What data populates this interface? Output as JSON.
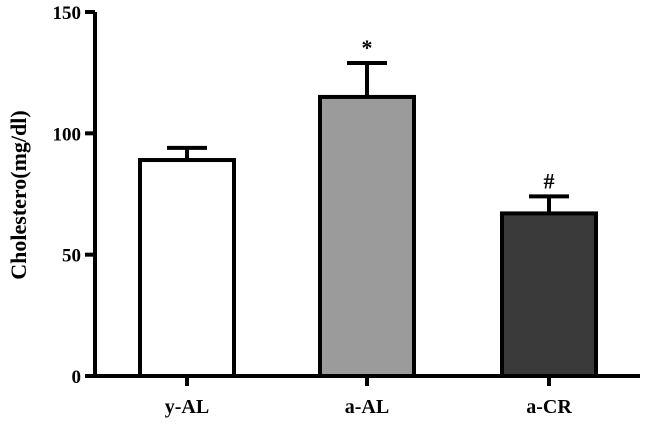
{
  "chart_data": {
    "type": "bar",
    "title": "",
    "xlabel": "",
    "ylabel": "Cholestero(mg/dl)",
    "ylim": [
      0,
      150
    ],
    "yticks": [
      0,
      50,
      100,
      150
    ],
    "grid": false,
    "legend": "none",
    "categories": [
      "y-AL",
      "a-AL",
      "a-CR"
    ],
    "values": [
      89,
      115,
      67
    ],
    "errors": [
      5,
      14,
      7
    ],
    "annotations": [
      "",
      "*",
      "#"
    ],
    "colors": [
      "#ffffff",
      "#9b9b9b",
      "#3a3a3a"
    ]
  }
}
